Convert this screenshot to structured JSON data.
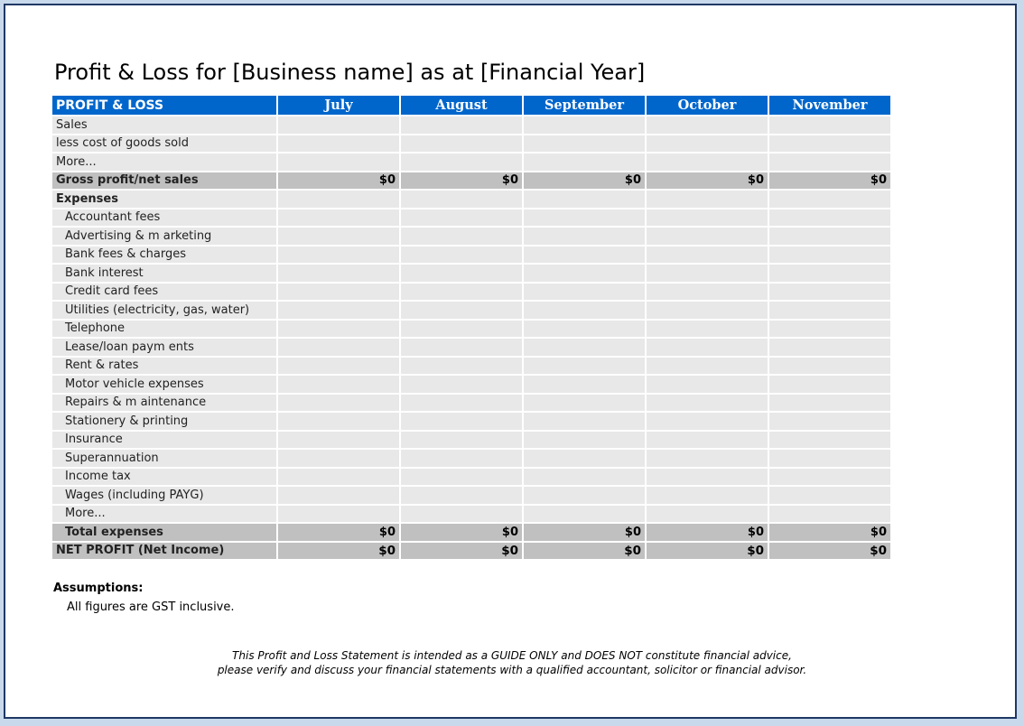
{
  "title": "Profit & Loss for [Business name] as at [Financial Year]",
  "table": {
    "header_label": "PROFIT & LOSS",
    "months": [
      "July",
      "August",
      "September",
      "October",
      "November"
    ],
    "rows": [
      {
        "label": "Sales",
        "type": "item",
        "values": [
          "",
          "",
          "",
          "",
          ""
        ]
      },
      {
        "label": "less cost of goods sold",
        "type": "item",
        "values": [
          "",
          "",
          "",
          "",
          ""
        ]
      },
      {
        "label": "More...",
        "type": "item",
        "values": [
          "",
          "",
          "",
          "",
          ""
        ]
      },
      {
        "label": "Gross profit/net sales",
        "type": "total",
        "values": [
          "$0",
          "$0",
          "$0",
          "$0",
          "$0"
        ]
      },
      {
        "label": "Expenses",
        "type": "section",
        "values": [
          "",
          "",
          "",
          "",
          ""
        ]
      },
      {
        "label": "Accountant fees",
        "type": "sub",
        "values": [
          "",
          "",
          "",
          "",
          ""
        ]
      },
      {
        "label": "Advertising & m arketing",
        "type": "sub",
        "values": [
          "",
          "",
          "",
          "",
          ""
        ]
      },
      {
        "label": "Bank fees & charges",
        "type": "sub",
        "values": [
          "",
          "",
          "",
          "",
          ""
        ]
      },
      {
        "label": "Bank interest",
        "type": "sub",
        "values": [
          "",
          "",
          "",
          "",
          ""
        ]
      },
      {
        "label": "Credit card fees",
        "type": "sub",
        "values": [
          "",
          "",
          "",
          "",
          ""
        ]
      },
      {
        "label": "Utilities (electricity, gas, water)",
        "type": "sub",
        "values": [
          "",
          "",
          "",
          "",
          ""
        ]
      },
      {
        "label": "Telephone",
        "type": "sub",
        "values": [
          "",
          "",
          "",
          "",
          ""
        ]
      },
      {
        "label": "Lease/loan paym ents",
        "type": "sub",
        "values": [
          "",
          "",
          "",
          "",
          ""
        ]
      },
      {
        "label": "Rent & rates",
        "type": "sub",
        "values": [
          "",
          "",
          "",
          "",
          ""
        ]
      },
      {
        "label": "Motor vehicle expenses",
        "type": "sub",
        "values": [
          "",
          "",
          "",
          "",
          ""
        ]
      },
      {
        "label": "Repairs & m aintenance",
        "type": "sub",
        "values": [
          "",
          "",
          "",
          "",
          ""
        ]
      },
      {
        "label": "Stationery & printing",
        "type": "sub",
        "values": [
          "",
          "",
          "",
          "",
          ""
        ]
      },
      {
        "label": "Insurance",
        "type": "sub",
        "values": [
          "",
          "",
          "",
          "",
          ""
        ]
      },
      {
        "label": "Superannuation",
        "type": "sub",
        "values": [
          "",
          "",
          "",
          "",
          ""
        ]
      },
      {
        "label": "Income tax",
        "type": "sub",
        "values": [
          "",
          "",
          "",
          "",
          ""
        ]
      },
      {
        "label": "Wages (including PAYG)",
        "type": "sub",
        "values": [
          "",
          "",
          "",
          "",
          ""
        ]
      },
      {
        "label": "More...",
        "type": "sub",
        "values": [
          "",
          "",
          "",
          "",
          ""
        ]
      },
      {
        "label": "Total expenses",
        "type": "subtotal",
        "values": [
          "$0",
          "$0",
          "$0",
          "$0",
          "$0"
        ]
      },
      {
        "label": "NET PROFIT (Net Income)",
        "type": "net",
        "values": [
          "$0",
          "$0",
          "$0",
          "$0",
          "$0"
        ]
      }
    ]
  },
  "assumptions": {
    "heading": "Assumptions:",
    "text": "All figures are GST inclusive."
  },
  "disclaimer": {
    "line1": "This Profit and Loss Statement is intended as a GUIDE ONLY and DOES NOT constitute financial advice,",
    "line2": "please verify and discuss your financial statements with a qualified accountant, solicitor or financial advisor."
  }
}
